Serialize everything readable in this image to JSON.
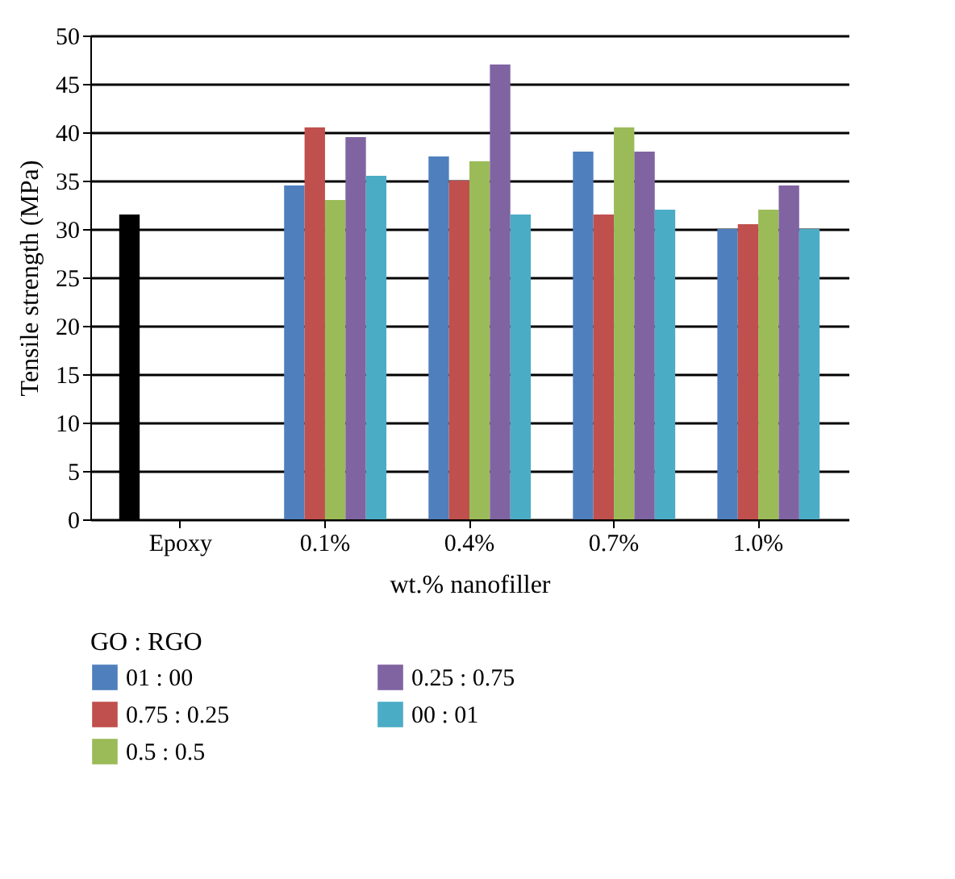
{
  "chart_data": {
    "type": "bar",
    "xlabel": "wt.% nanofiller",
    "ylabel": "Tensile strength (MPa)",
    "legend_title": "GO : RGO",
    "categories": [
      "Epoxy",
      "0.1%",
      "0.4%",
      "0.7%",
      "1.0%"
    ],
    "series": [
      {
        "color": "#000000",
        "values": [
          31.5,
          null,
          null,
          null,
          null
        ]
      },
      {
        "name": "01 : 00",
        "color": "#4f7fbd",
        "values": [
          null,
          34.5,
          37.5,
          38,
          30
        ]
      },
      {
        "name": "0.75 : 0.25",
        "color": "#c0504d",
        "values": [
          null,
          40.5,
          35,
          31.5,
          30.5
        ]
      },
      {
        "name": "0.5 : 0.5",
        "color": "#9bbb59",
        "values": [
          null,
          33,
          37,
          40.5,
          32
        ]
      },
      {
        "name": "0.25 : 0.75",
        "color": "#8064a2",
        "values": [
          null,
          39.5,
          47,
          38,
          34.5
        ]
      },
      {
        "name": "00 : 01",
        "color": "#4bacc6",
        "values": [
          null,
          35.5,
          31.5,
          32,
          30
        ]
      }
    ],
    "ylim": [
      0,
      50
    ],
    "yticks": [
      0,
      5,
      10,
      15,
      20,
      25,
      30,
      35,
      40,
      45,
      50
    ],
    "grid": "y",
    "legend": "bottom"
  }
}
